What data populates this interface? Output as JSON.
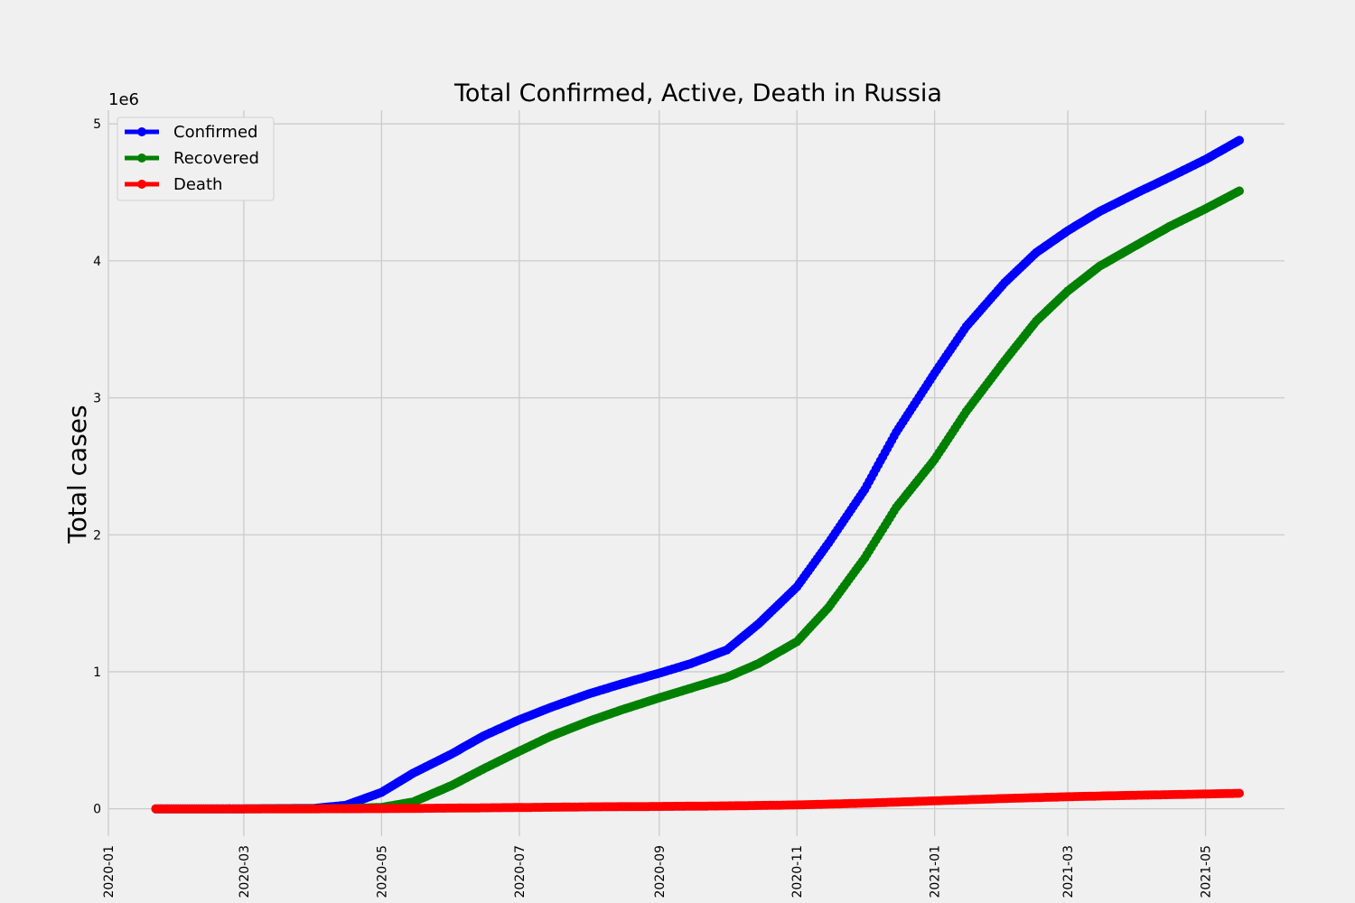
{
  "chart_data": {
    "type": "line",
    "title": "Total Confirmed, Active, Death in Russia",
    "xlabel": "",
    "ylabel": "Total cases",
    "y_offset_label": "1e6",
    "x_range": [
      "2020-01-01",
      "2021-06-05"
    ],
    "ylim": [
      -0.2,
      5.1
    ],
    "y_ticks": [
      0,
      1,
      2,
      3,
      4,
      5
    ],
    "y_tick_labels": [
      "0",
      "1",
      "2",
      "3",
      "4",
      "5"
    ],
    "x_ticks": [
      "2020-01-01",
      "2020-03-01",
      "2020-05-01",
      "2020-07-01",
      "2020-09-01",
      "2020-11-01",
      "2021-01-01",
      "2021-03-01",
      "2021-05-01"
    ],
    "x_tick_labels": [
      "2020-01",
      "2020-03",
      "2020-05",
      "2020-07",
      "2020-09",
      "2020-11",
      "2021-01",
      "2021-03",
      "2021-05"
    ],
    "grid": true,
    "legend_position": "top-left",
    "series": [
      {
        "name": "Confirmed",
        "color": "#0000ff",
        "points": [
          [
            "2020-01-22",
            0
          ],
          [
            "2020-03-01",
            0
          ],
          [
            "2020-04-01",
            0.003
          ],
          [
            "2020-04-15",
            0.025
          ],
          [
            "2020-05-01",
            0.12
          ],
          [
            "2020-05-15",
            0.26
          ],
          [
            "2020-06-01",
            0.4
          ],
          [
            "2020-06-15",
            0.53
          ],
          [
            "2020-07-01",
            0.65
          ],
          [
            "2020-07-15",
            0.74
          ],
          [
            "2020-08-01",
            0.84
          ],
          [
            "2020-08-15",
            0.91
          ],
          [
            "2020-09-01",
            0.99
          ],
          [
            "2020-09-15",
            1.06
          ],
          [
            "2020-10-01",
            1.16
          ],
          [
            "2020-10-15",
            1.35
          ],
          [
            "2020-11-01",
            1.62
          ],
          [
            "2020-11-15",
            1.94
          ],
          [
            "2020-12-01",
            2.33
          ],
          [
            "2020-12-15",
            2.75
          ],
          [
            "2021-01-01",
            3.18
          ],
          [
            "2021-01-15",
            3.52
          ],
          [
            "2021-02-01",
            3.84
          ],
          [
            "2021-02-15",
            4.06
          ],
          [
            "2021-03-01",
            4.22
          ],
          [
            "2021-03-15",
            4.36
          ],
          [
            "2021-04-01",
            4.5
          ],
          [
            "2021-04-15",
            4.61
          ],
          [
            "2021-05-01",
            4.74
          ],
          [
            "2021-05-16",
            4.88
          ]
        ]
      },
      {
        "name": "Recovered",
        "color": "#008000",
        "points": [
          [
            "2020-01-22",
            0
          ],
          [
            "2020-03-01",
            0
          ],
          [
            "2020-04-01",
            0.0003
          ],
          [
            "2020-04-15",
            0.002
          ],
          [
            "2020-05-01",
            0.01
          ],
          [
            "2020-05-15",
            0.05
          ],
          [
            "2020-06-01",
            0.17
          ],
          [
            "2020-06-15",
            0.29
          ],
          [
            "2020-07-01",
            0.42
          ],
          [
            "2020-07-15",
            0.53
          ],
          [
            "2020-08-01",
            0.64
          ],
          [
            "2020-08-15",
            0.72
          ],
          [
            "2020-09-01",
            0.81
          ],
          [
            "2020-09-15",
            0.88
          ],
          [
            "2020-10-01",
            0.96
          ],
          [
            "2020-10-15",
            1.06
          ],
          [
            "2020-11-01",
            1.22
          ],
          [
            "2020-11-15",
            1.47
          ],
          [
            "2020-12-01",
            1.83
          ],
          [
            "2020-12-15",
            2.2
          ],
          [
            "2021-01-01",
            2.55
          ],
          [
            "2021-01-15",
            2.9
          ],
          [
            "2021-02-01",
            3.27
          ],
          [
            "2021-02-15",
            3.56
          ],
          [
            "2021-03-01",
            3.78
          ],
          [
            "2021-03-15",
            3.96
          ],
          [
            "2021-04-01",
            4.12
          ],
          [
            "2021-04-15",
            4.25
          ],
          [
            "2021-05-01",
            4.38
          ],
          [
            "2021-05-16",
            4.51
          ]
        ]
      },
      {
        "name": "Death",
        "color": "#ff0000",
        "points": [
          [
            "2020-01-22",
            0
          ],
          [
            "2020-04-01",
            0
          ],
          [
            "2020-05-01",
            0.001
          ],
          [
            "2020-06-01",
            0.005
          ],
          [
            "2020-07-01",
            0.009
          ],
          [
            "2020-08-01",
            0.014
          ],
          [
            "2020-09-01",
            0.017
          ],
          [
            "2020-10-01",
            0.021
          ],
          [
            "2020-11-01",
            0.028
          ],
          [
            "2020-12-01",
            0.041
          ],
          [
            "2021-01-01",
            0.058
          ],
          [
            "2021-02-01",
            0.075
          ],
          [
            "2021-03-01",
            0.088
          ],
          [
            "2021-04-01",
            0.099
          ],
          [
            "2021-05-01",
            0.108
          ],
          [
            "2021-05-16",
            0.113
          ]
        ]
      }
    ]
  }
}
